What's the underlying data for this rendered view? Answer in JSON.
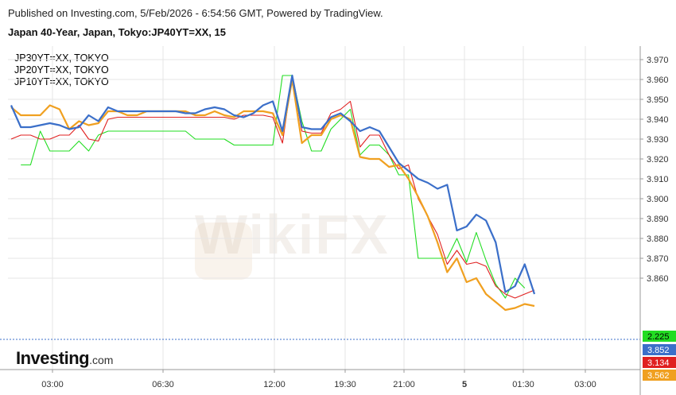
{
  "header": {
    "published": "Published on Investing.com, 5/Feb/2026 - 6:54:56 GMT, Powered by TradingView.",
    "title": "Japan 40-Year, Japan, Tokyo:JP40YT=XX, 15"
  },
  "legend": [
    "JP30YT=XX, TOKYO",
    "JP20YT=XX, TOKYO",
    "JP10YT=XX, TOKYO"
  ],
  "logo": {
    "main": "Investing",
    "suffix": ".com"
  },
  "watermark": "WikiFX",
  "colors": {
    "jp40": "#3b6fc9",
    "jp30": "#f0a020",
    "jp20": "#e02020",
    "jp10": "#22dd22",
    "grid": "#e6e6e6",
    "current_line": "#3b6fc9"
  },
  "chart_data": {
    "type": "line",
    "x_labels": [
      "03:00",
      "06:30",
      "12:00",
      "19:30",
      "21:00",
      "5",
      "01:30",
      "03:00"
    ],
    "y_ticks": [
      "3.970",
      "3.960",
      "3.950",
      "3.940",
      "3.930",
      "3.920",
      "3.910",
      "3.900",
      "3.890",
      "3.880",
      "3.870",
      "3.860"
    ],
    "ylim": [
      3.852,
      3.975
    ],
    "price_tags": [
      {
        "label": "2.225",
        "color": "#22dd22",
        "text_color": "#000000"
      },
      {
        "label": "3.852",
        "color": "#3b6fc9",
        "text_color": "#ffffff"
      },
      {
        "label": "3.134",
        "color": "#e02020",
        "text_color": "#ffffff"
      },
      {
        "label": "3.562",
        "color": "#f0a020",
        "text_color": "#ffffff"
      }
    ],
    "series": [
      {
        "name": "Japan 40-Year",
        "color": "#3b6fc9",
        "values": [
          3.947,
          3.936,
          3.936,
          3.937,
          3.938,
          3.937,
          3.935,
          3.936,
          3.942,
          3.939,
          3.946,
          3.944,
          3.944,
          3.944,
          3.944,
          3.944,
          3.944,
          3.944,
          3.943,
          3.943,
          3.945,
          3.946,
          3.945,
          3.942,
          3.941,
          3.943,
          3.947,
          3.949,
          3.934,
          3.962,
          3.936,
          3.935,
          3.935,
          3.941,
          3.943,
          3.939,
          3.934,
          3.936,
          3.934,
          3.926,
          3.918,
          3.914,
          3.91,
          3.908,
          3.905,
          3.907,
          3.884,
          3.886,
          3.892,
          3.889,
          3.878,
          3.853,
          3.856,
          3.867,
          3.852
        ]
      },
      {
        "name": "JP30YT=XX",
        "color": "#f0a020",
        "values": [
          3.946,
          3.942,
          3.942,
          3.942,
          3.947,
          3.945,
          3.935,
          3.939,
          3.937,
          3.938,
          3.944,
          3.944,
          3.942,
          3.942,
          3.944,
          3.944,
          3.944,
          3.944,
          3.944,
          3.942,
          3.942,
          3.944,
          3.942,
          3.941,
          3.944,
          3.944,
          3.944,
          3.943,
          3.932,
          3.96,
          3.928,
          3.932,
          3.932,
          3.94,
          3.942,
          3.94,
          3.921,
          3.92,
          3.92,
          3.916,
          3.917,
          3.91,
          3.901,
          3.891,
          3.878,
          3.863,
          3.87,
          3.858,
          3.86,
          3.852,
          3.848,
          3.844,
          3.845,
          3.847,
          3.846
        ]
      },
      {
        "name": "JP20YT=XX",
        "color": "#e02020",
        "values": [
          3.93,
          3.932,
          3.932,
          3.93,
          3.93,
          3.932,
          3.932,
          3.937,
          3.93,
          3.929,
          3.94,
          3.941,
          3.941,
          3.941,
          3.941,
          3.941,
          3.941,
          3.941,
          3.941,
          3.941,
          3.941,
          3.941,
          3.941,
          3.94,
          3.942,
          3.942,
          3.942,
          3.941,
          3.928,
          3.962,
          3.934,
          3.933,
          3.933,
          3.943,
          3.945,
          3.949,
          3.926,
          3.932,
          3.932,
          3.922,
          3.915,
          3.917,
          3.9,
          3.891,
          3.882,
          3.867,
          3.874,
          3.867,
          3.868,
          3.866,
          3.856,
          3.852,
          3.85,
          3.852,
          3.854
        ]
      },
      {
        "name": "JP10YT=XX",
        "color": "#22dd22",
        "values": [
          null,
          3.917,
          3.917,
          3.934,
          3.924,
          3.924,
          3.924,
          3.929,
          3.924,
          3.932,
          3.934,
          3.934,
          3.934,
          3.934,
          3.934,
          3.934,
          3.934,
          3.934,
          3.934,
          3.93,
          3.93,
          3.93,
          3.93,
          3.927,
          3.927,
          3.927,
          3.927,
          3.927,
          3.962,
          3.962,
          3.939,
          3.924,
          3.924,
          3.935,
          3.94,
          3.945,
          3.922,
          3.927,
          3.927,
          3.922,
          3.912,
          3.912,
          3.87,
          3.87,
          3.87,
          3.87,
          3.88,
          3.868,
          3.883,
          3.869,
          3.857,
          3.85,
          3.86,
          3.855,
          null
        ]
      }
    ]
  }
}
